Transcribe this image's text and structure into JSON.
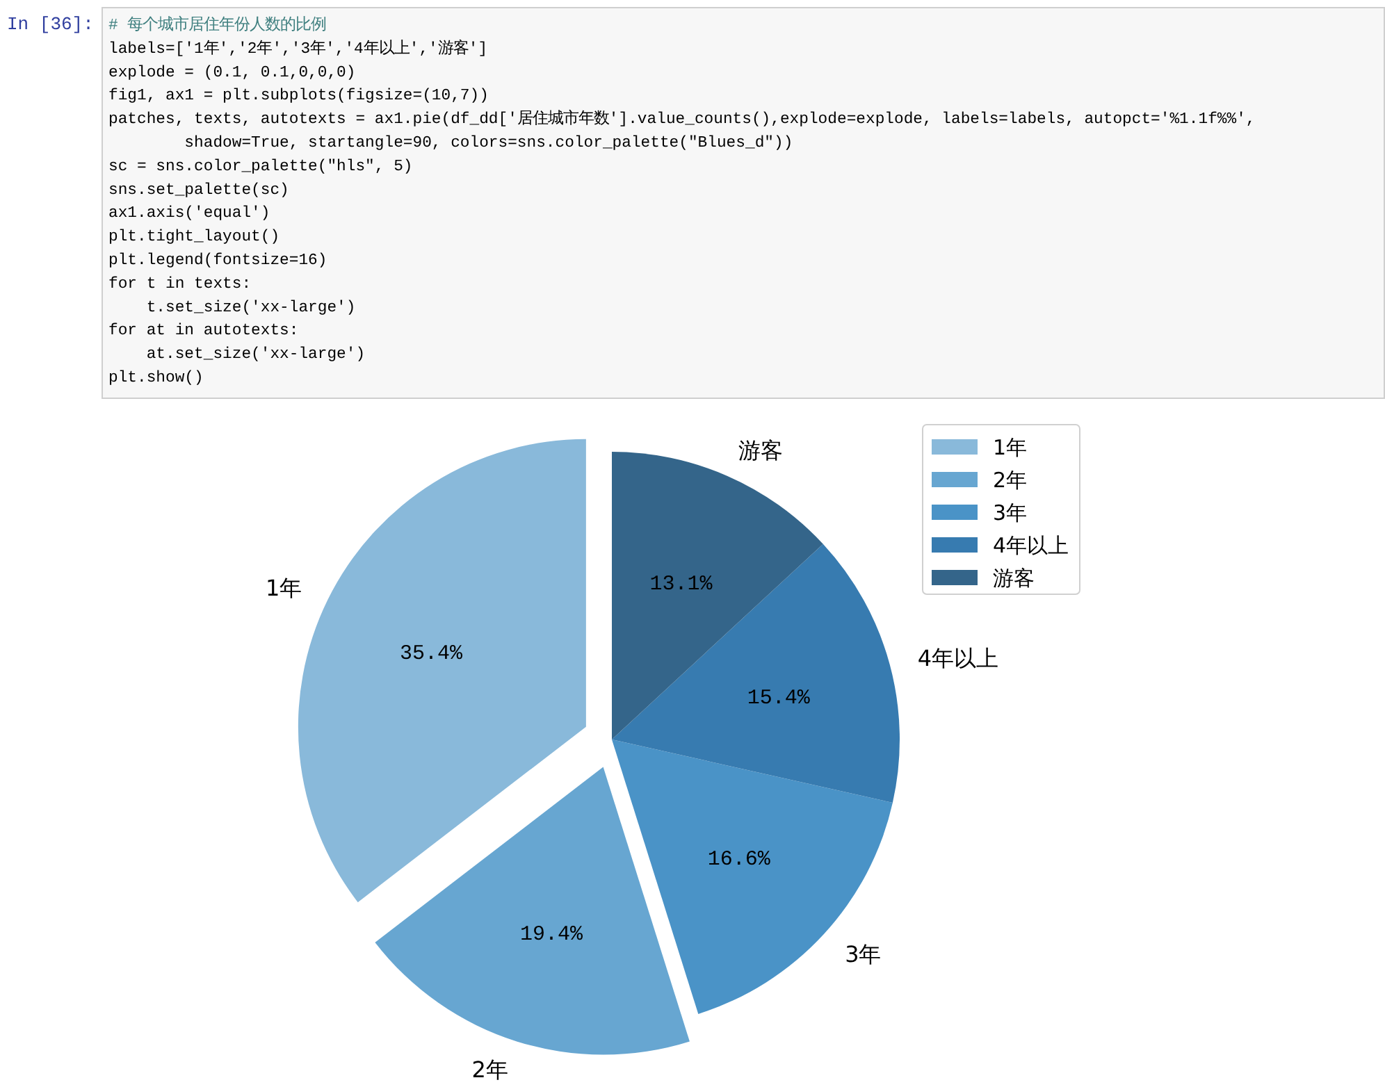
{
  "chart_data": {
    "type": "pie",
    "categories": [
      "1年",
      "2年",
      "3年",
      "4年以上",
      "游客"
    ],
    "values": [
      35.4,
      19.4,
      16.6,
      15.4,
      13.1
    ],
    "colors": [
      "#89b9da",
      "#67a6d1",
      "#4a93c7",
      "#377bb0",
      "#34658a"
    ],
    "value_labels": [
      "35.4%",
      "19.4%",
      "16.6%",
      "15.4%",
      "13.1%"
    ],
    "legend": "top right",
    "annotations": [
      "In [36]:",
      "# 每个城市居住年份人数的比例",
      "labels=['1年','2年','3年','4年以上','游客']",
      "explode = (0.1, 0.1,0,0,0)",
      "fig1, ax1 = plt.subplots(figsize=(10,7))",
      "patches, texts, autotexts = ax1.pie(df_dd['居住城市年数'].value_counts(),explode=explode, labels=labels, autopct='%1.1f%%',",
      "        shadow=True, startangle=90, colors=sns.color_palette(\"Blues_d\"))",
      "sc = sns.color_palette(\"hls\", 5)",
      "sns.set_palette(sc)",
      "ax1.axis('equal')",
      "plt.tight_layout()",
      "plt.legend(fontsize=16)",
      "for t in texts:",
      "    t.set_size('xx-large')",
      "for at in autotexts:",
      "    at.set_size('xx-large')",
      "plt.show()"
    ]
  }
}
